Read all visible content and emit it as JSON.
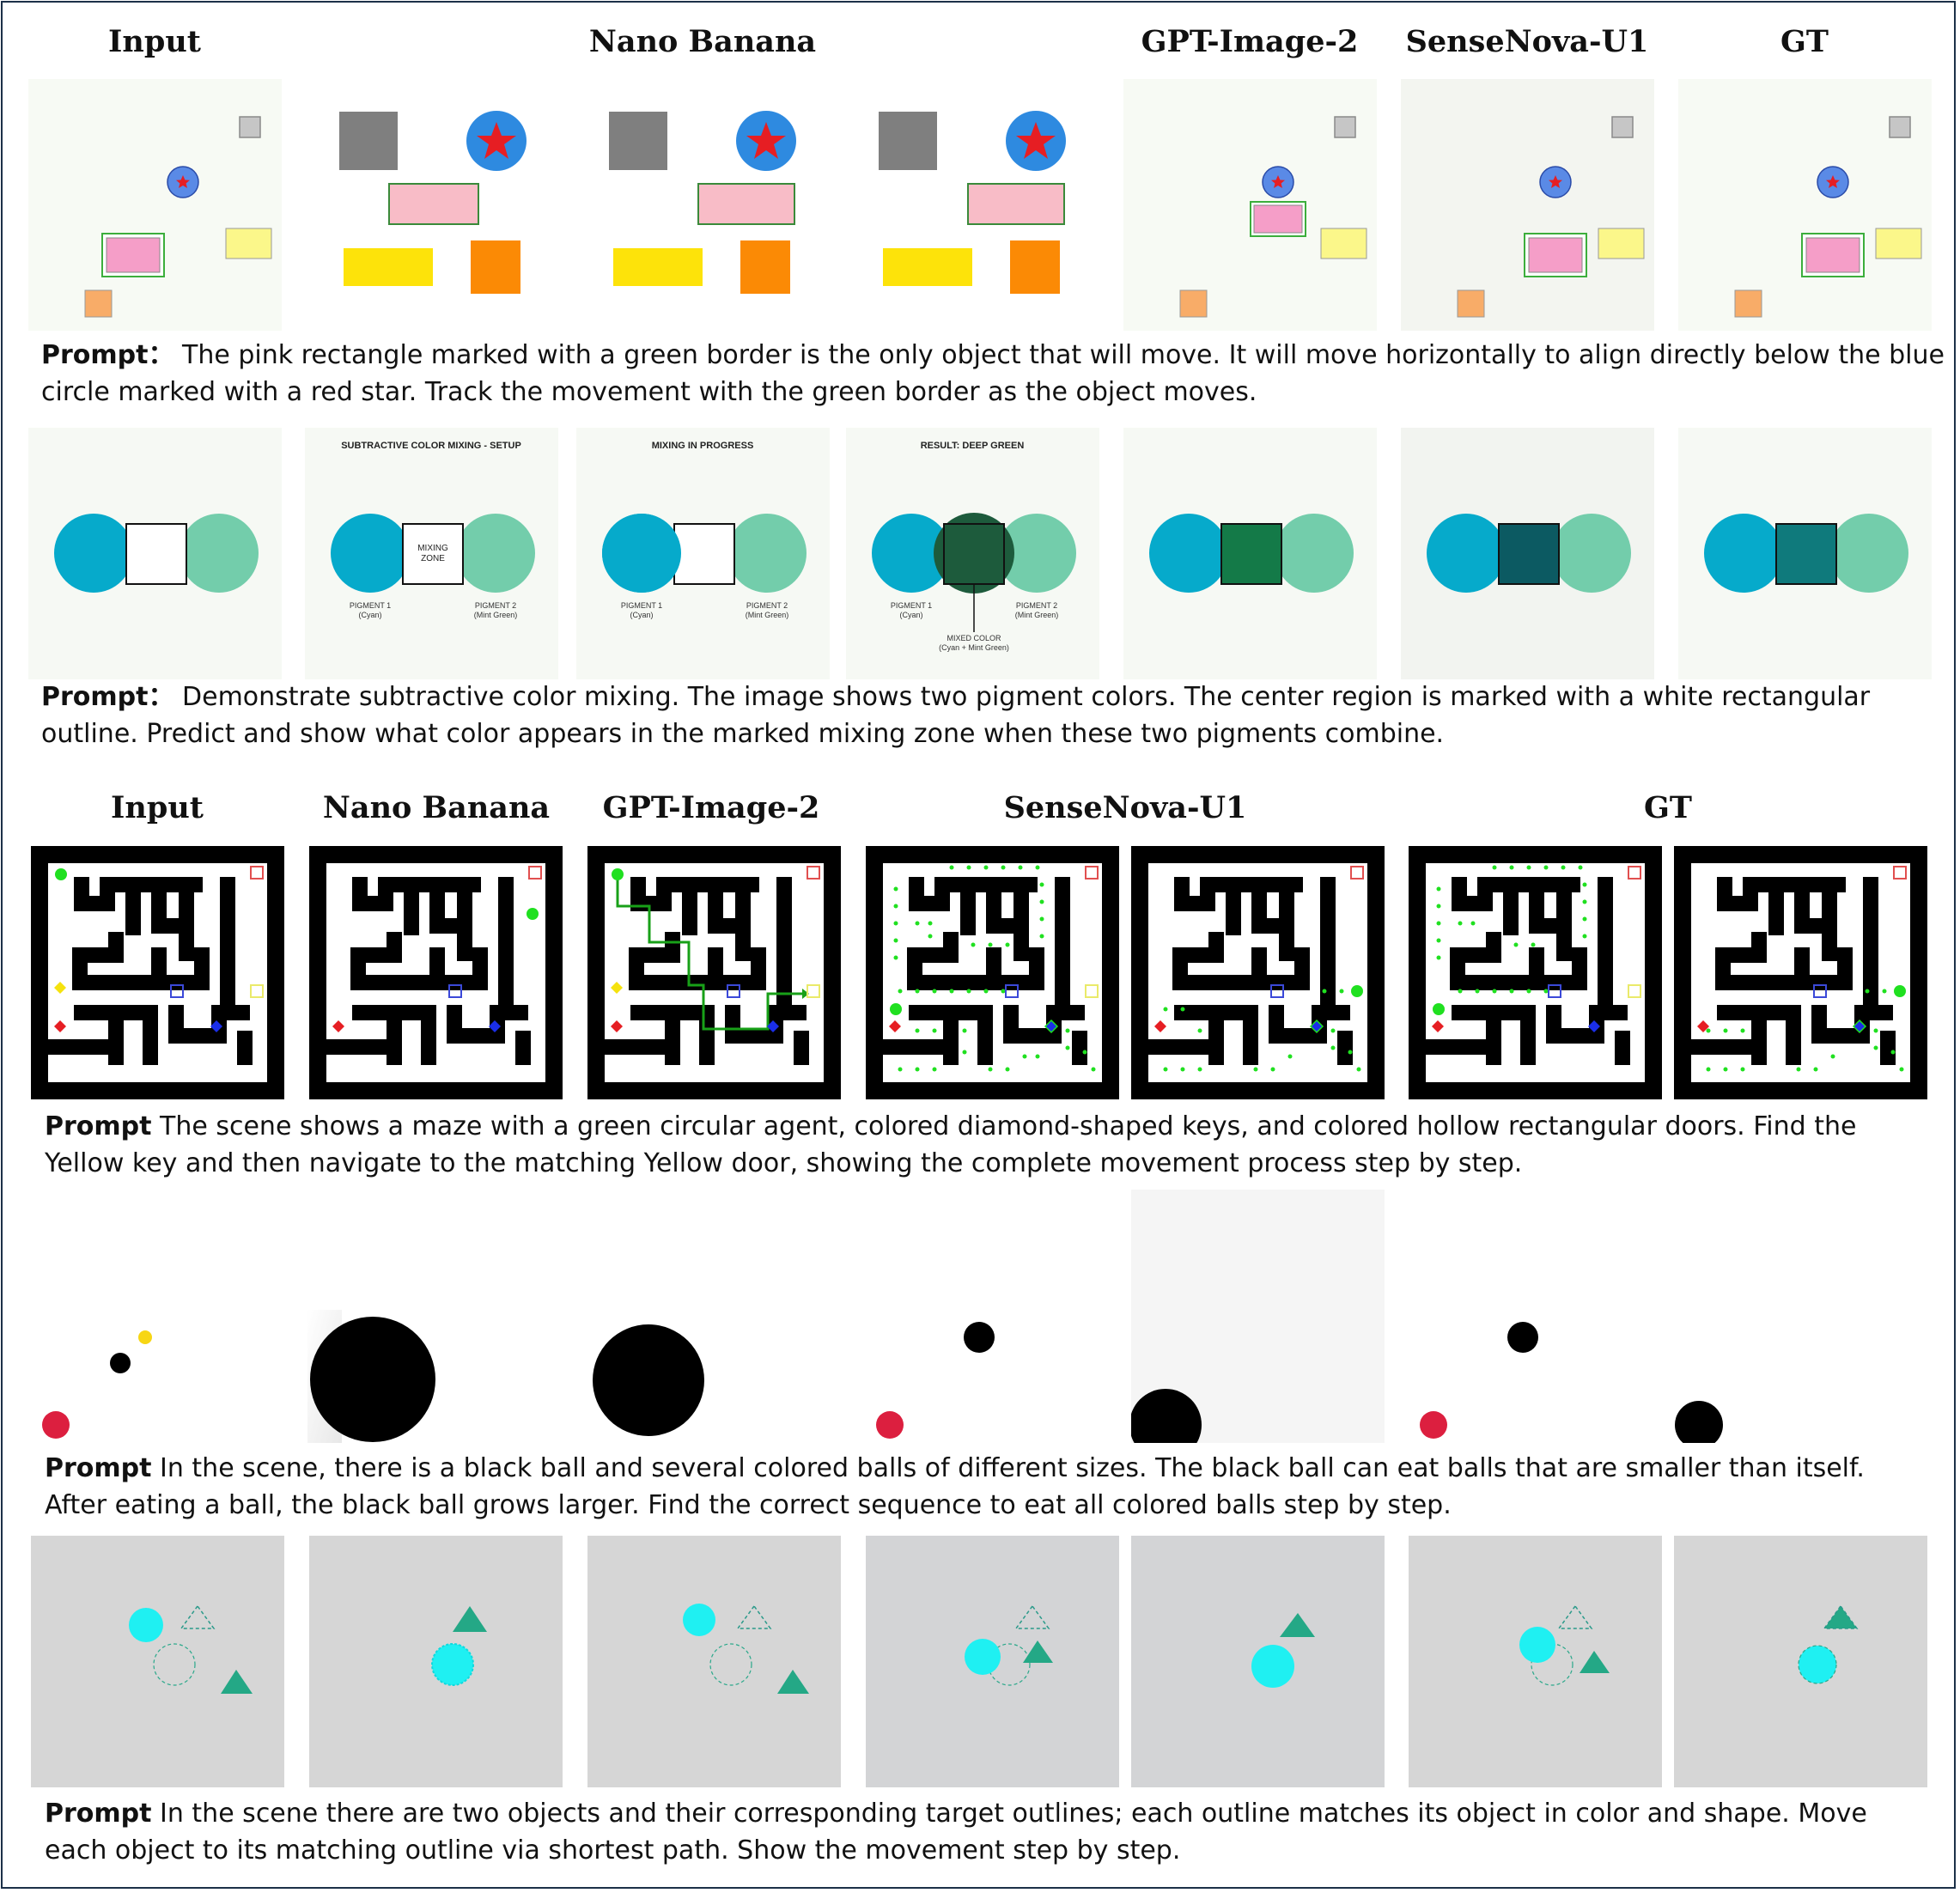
{
  "headers": {
    "top": [
      "Input",
      "Nano Banana",
      "GPT-Image-2",
      "SenseNova-U1",
      "GT"
    ],
    "mid": [
      "Input",
      "Nano Banana",
      "GPT-Image-2",
      "SenseNova-U1",
      "GT"
    ]
  },
  "prompt_label": "Prompt",
  "prompt_label_colon": "Prompt：",
  "prompts": {
    "p1": [
      "The pink rectangle marked with a green border is the only object that will move. It will move horizontally to align directly below the blue",
      "circle marked with a red star. Track the movement with the green border as the object moves."
    ],
    "p2": [
      "Demonstrate subtractive color mixing. The image shows two pigment colors. The center region is marked with a white rectangular",
      "outline. Predict and show what color appears in the marked mixing zone when these two pigments combine."
    ],
    "p3": [
      "The scene shows a maze with a green circular agent, colored diamond-shaped keys, and colored hollow rectangular doors. Find the",
      "Yellow key and then navigate to the matching Yellow door, showing the complete movement process step by step."
    ],
    "p4": [
      "In the scene, there is a black ball and several colored balls of different sizes. The black ball can eat balls that are smaller than itself.",
      "After eating a ball, the black ball grows larger. Find the correct sequence to eat all colored balls step by step."
    ],
    "p5": [
      "In the scene there are two objects and their corresponding target outlines; each outline matches its object in color and shape. Move",
      "each object to its matching outline via shortest path. Show the movement step by step."
    ]
  },
  "mixing_labels": {
    "setup_title": "SUBTRACTIVE COLOR MIXING - SETUP",
    "progress_title": "MIXING IN PROGRESS",
    "result_title": "RESULT: DEEP GREEN",
    "zone": [
      "MIXING",
      "ZONE"
    ],
    "pigment1": [
      "PIGMENT 1",
      "(Cyan)"
    ],
    "pigment2": [
      "PIGMENT 2",
      "(Mint Green)"
    ],
    "mixed": [
      "MIXED COLOR",
      "(Cyan + Mint Green)"
    ]
  },
  "colors": {
    "cyan": "#06aacb",
    "mint": "#73cdab",
    "pink": "#f59ec8",
    "yellow": "#fbf78a",
    "orange": "#f8ac68",
    "gray": "#c6c6c6",
    "star_blue": "#5a8ae6",
    "red": "#e61e23",
    "green_agent": "#20e020",
    "teal_obj": "#2aa88a",
    "ball_red": "#dc1f3f",
    "ball_yellow": "#f7d614",
    "gt_mix": "#0f7a7c",
    "gpt_mix": "#147a48",
    "sense_mix": "#0c5a62"
  },
  "icons": [
    "star-icon",
    "diamond-key-icon",
    "door-icon",
    "circle-agent-icon",
    "triangle-icon"
  ]
}
